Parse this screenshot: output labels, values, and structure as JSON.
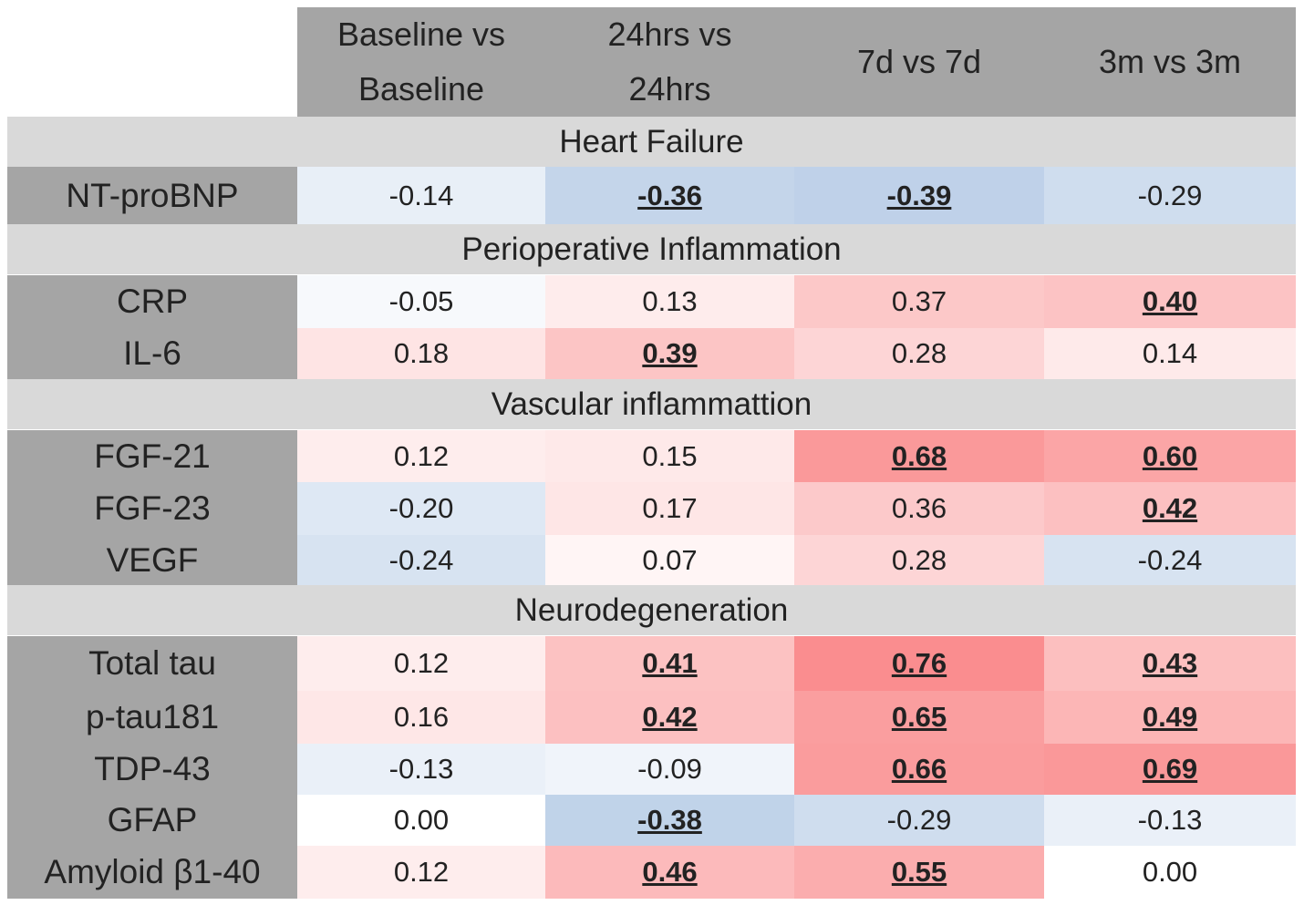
{
  "table": {
    "columns": [
      "Baseline vs Baseline",
      "24hrs vs 24hrs",
      "7d vs 7d",
      "3m vs 3m"
    ],
    "sections": [
      {
        "title": "Heart Failure",
        "rows": [
          {
            "label": "NT-proBNP",
            "values": [
              "-0.14",
              "-0.36",
              "-0.39",
              "-0.29"
            ],
            "emphasized": [
              false,
              true,
              true,
              false
            ]
          }
        ]
      },
      {
        "title": "Perioperative Inflammation",
        "rows": [
          {
            "label": "CRP",
            "values": [
              "-0.05",
              "0.13",
              "0.37",
              "0.40"
            ],
            "emphasized": [
              false,
              false,
              false,
              true
            ]
          },
          {
            "label": "IL-6",
            "values": [
              "0.18",
              "0.39",
              "0.28",
              "0.14"
            ],
            "emphasized": [
              false,
              true,
              false,
              false
            ]
          }
        ]
      },
      {
        "title": "Vascular inflammattion",
        "rows": [
          {
            "label": "FGF-21",
            "values": [
              "0.12",
              "0.15",
              "0.68",
              "0.60"
            ],
            "emphasized": [
              false,
              false,
              true,
              true
            ]
          },
          {
            "label": "FGF-23",
            "values": [
              "-0.20",
              "0.17",
              "0.36",
              "0.42"
            ],
            "emphasized": [
              false,
              false,
              false,
              true
            ]
          },
          {
            "label": "VEGF",
            "values": [
              "-0.24",
              "0.07",
              "0.28",
              "-0.24"
            ],
            "emphasized": [
              false,
              false,
              false,
              false
            ]
          }
        ]
      },
      {
        "title": "Neurodegeneration",
        "rows": [
          {
            "label": "Total tau",
            "values": [
              "0.12",
              "0.41",
              "0.76",
              "0.43"
            ],
            "emphasized": [
              false,
              true,
              true,
              true
            ]
          },
          {
            "label": "p-tau181",
            "values": [
              "0.16",
              "0.42",
              "0.65",
              "0.49"
            ],
            "emphasized": [
              false,
              true,
              true,
              true
            ]
          },
          {
            "label": "TDP-43",
            "values": [
              "-0.13",
              "-0.09",
              "0.66",
              "0.69"
            ],
            "emphasized": [
              false,
              false,
              true,
              true
            ]
          },
          {
            "label": "GFAP",
            "values": [
              "0.00",
              "-0.38",
              "-0.29",
              "-0.13"
            ],
            "emphasized": [
              false,
              true,
              false,
              false
            ]
          },
          {
            "label": "Amyloid β1-40",
            "values": [
              "0.12",
              "0.46",
              "0.55",
              "0.00"
            ],
            "emphasized": [
              false,
              true,
              true,
              false
            ]
          }
        ]
      }
    ]
  }
}
